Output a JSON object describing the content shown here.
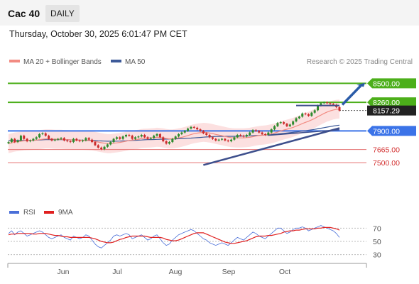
{
  "header": {
    "instrument": "Cac 40",
    "timeframe": "DAILY",
    "timestamp": "Thursday, October 30, 2025 6:01:47 PM CET"
  },
  "legend": {
    "ma20_label": "MA 20 + Bollinger Bands",
    "ma50_label": "MA 50",
    "credit": "Research © 2025 Trading Central",
    "ma20_color": "#f28b82",
    "ma50_color": "#3d5a99"
  },
  "rsi_legend": {
    "rsi_label": "RSI",
    "ma9_label": "9MA",
    "rsi_color": "#4a6fd8",
    "ma9_color": "#e02020"
  },
  "colors": {
    "resistance": "#4caf1a",
    "pivot": "#3b73e8",
    "support": "#e57373",
    "trendline": "#3d4f8c",
    "up_candle": "#2e8b2e",
    "down_candle": "#cc2b2b",
    "band_fill": "#fbd5d5"
  },
  "chart_data": [
    {
      "type": "candlestick",
      "title": "",
      "x_months": [
        "Jun",
        "Jul",
        "Aug",
        "Sep",
        "Oct"
      ],
      "ylim": [
        7000,
        8700
      ],
      "levels": [
        {
          "value": 8500.0,
          "label": "8500.00",
          "kind": "resistance"
        },
        {
          "value": 8260.0,
          "label": "8260.00",
          "kind": "resistance"
        },
        {
          "value": 8157.29,
          "label": "8157.29",
          "kind": "last_price"
        },
        {
          "value": 7900.0,
          "label": "7900.00",
          "kind": "pivot"
        },
        {
          "value": 7665.0,
          "label": "7665.00",
          "kind": "support"
        },
        {
          "value": 7500.0,
          "label": "7500.00",
          "kind": "support"
        }
      ],
      "closes": [
        7760,
        7800,
        7760,
        7780,
        7840,
        7800,
        7770,
        7780,
        7800,
        7820,
        7860,
        7870,
        7840,
        7800,
        7780,
        7790,
        7800,
        7810,
        7780,
        7770,
        7760,
        7800,
        7780,
        7770,
        7780,
        7810,
        7790,
        7760,
        7720,
        7690,
        7670,
        7700,
        7730,
        7760,
        7800,
        7820,
        7800,
        7830,
        7850,
        7840,
        7800,
        7820,
        7830,
        7850,
        7820,
        7800,
        7810,
        7840,
        7860,
        7820,
        7770,
        7740,
        7760,
        7800,
        7830,
        7860,
        7880,
        7900,
        7930,
        7950,
        7940,
        7920,
        7900,
        7870,
        7850,
        7820,
        7800,
        7780,
        7790,
        7800,
        7780,
        7770,
        7790,
        7820,
        7850,
        7840,
        7830,
        7850,
        7880,
        7910,
        7900,
        7880,
        7860,
        7850,
        7880,
        7920,
        7960,
        8000,
        8010,
        7990,
        7960,
        7980,
        8020,
        8060,
        8080,
        8120,
        8110,
        8090,
        8130,
        8160,
        8220,
        8250,
        8260,
        8250,
        8240,
        8230,
        8200,
        8157
      ],
      "ma20": [
        7740,
        7750,
        7760,
        7765,
        7770,
        7775,
        7778,
        7780,
        7782,
        7785,
        7790,
        7795,
        7800,
        7800,
        7798,
        7795,
        7795,
        7795,
        7792,
        7790,
        7788,
        7785,
        7784,
        7783,
        7782,
        7780,
        7778,
        7775,
        7768,
        7760,
        7752,
        7745,
        7740,
        7740,
        7745,
        7750,
        7755,
        7762,
        7770,
        7780,
        7785,
        7790,
        7795,
        7805,
        7808,
        7810,
        7812,
        7815,
        7820,
        7818,
        7812,
        7805,
        7800,
        7800,
        7805,
        7812,
        7820,
        7830,
        7842,
        7855,
        7865,
        7872,
        7878,
        7882,
        7880,
        7874,
        7866,
        7856,
        7848,
        7840,
        7830,
        7822,
        7816,
        7813,
        7812,
        7812,
        7813,
        7816,
        7820,
        7828,
        7836,
        7842,
        7846,
        7850,
        7856,
        7864,
        7874,
        7886,
        7900,
        7912,
        7922,
        7932,
        7945,
        7960,
        7975,
        7992,
        8008,
        8022,
        8040,
        8058,
        8080,
        8100,
        8120,
        8138,
        8152,
        8164,
        8172,
        8176
      ],
      "ma50": [
        7780,
        7780,
        7780,
        7780,
        7780,
        7780,
        7780,
        7780,
        7782,
        7784,
        7786,
        7788,
        7790,
        7790,
        7790,
        7790,
        7790,
        7790,
        7789,
        7788,
        7787,
        7786,
        7785,
        7784,
        7783,
        7782,
        7781,
        7780,
        7778,
        7776,
        7774,
        7772,
        7770,
        7770,
        7770,
        7771,
        7772,
        7774,
        7776,
        7778,
        7780,
        7782,
        7784,
        7786,
        7788,
        7790,
        7791,
        7792,
        7794,
        7795,
        7796,
        7797,
        7798,
        7799,
        7800,
        7802,
        7804,
        7806,
        7808,
        7810,
        7812,
        7815,
        7818,
        7821,
        7824,
        7826,
        7828,
        7830,
        7831,
        7832,
        7832,
        7832,
        7832,
        7832,
        7833,
        7834,
        7835,
        7836,
        7838,
        7840,
        7842,
        7844,
        7846,
        7848,
        7851,
        7854,
        7858,
        7862,
        7866,
        7870,
        7874,
        7878,
        7882,
        7887,
        7892,
        7897,
        7902,
        7908,
        7914,
        7920,
        7927,
        7934,
        7941,
        7948,
        7955,
        7962,
        7968,
        7973
      ],
      "bb_width": 120
    },
    {
      "type": "line",
      "title": "",
      "series": [
        {
          "name": "RSI",
          "values": [
            62,
            66,
            60,
            64,
            66,
            62,
            58,
            60,
            62,
            64,
            66,
            64,
            60,
            56,
            54,
            56,
            58,
            60,
            56,
            54,
            52,
            58,
            56,
            54,
            56,
            60,
            58,
            52,
            46,
            42,
            40,
            44,
            48,
            52,
            58,
            60,
            58,
            60,
            62,
            60,
            54,
            56,
            58,
            60,
            56,
            52,
            54,
            58,
            60,
            54,
            48,
            44,
            46,
            52,
            56,
            60,
            62,
            64,
            66,
            68,
            66,
            62,
            58,
            54,
            52,
            48,
            46,
            44,
            46,
            48,
            46,
            44,
            48,
            52,
            56,
            54,
            52,
            56,
            60,
            64,
            62,
            58,
            56,
            54,
            58,
            62,
            66,
            70,
            70,
            66,
            62,
            64,
            68,
            70,
            70,
            72,
            70,
            66,
            68,
            70,
            72,
            74,
            72,
            70,
            68,
            66,
            62,
            56
          ]
        },
        {
          "name": "9MA",
          "values": [
            60,
            61,
            61,
            62,
            62,
            62,
            62,
            62,
            61,
            61,
            62,
            62,
            62,
            61,
            60,
            59,
            59,
            58,
            57,
            57,
            56,
            56,
            56,
            56,
            56,
            56,
            56,
            55,
            54,
            52,
            50,
            49,
            48,
            48,
            49,
            51,
            53,
            54,
            56,
            57,
            58,
            58,
            58,
            58,
            58,
            57,
            56,
            56,
            56,
            56,
            55,
            53,
            52,
            51,
            51,
            52,
            54,
            56,
            58,
            60,
            62,
            63,
            63,
            63,
            61,
            59,
            57,
            55,
            53,
            51,
            49,
            48,
            47,
            47,
            48,
            49,
            50,
            51,
            53,
            55,
            57,
            58,
            58,
            58,
            59,
            59,
            60,
            61,
            62,
            64,
            65,
            66,
            66,
            67,
            67,
            68,
            69,
            69,
            69,
            69,
            70,
            70,
            71,
            71,
            71,
            70,
            69,
            67
          ]
        }
      ],
      "yticks": [
        "70",
        "50",
        "30"
      ],
      "ylim": [
        20,
        80
      ]
    }
  ]
}
